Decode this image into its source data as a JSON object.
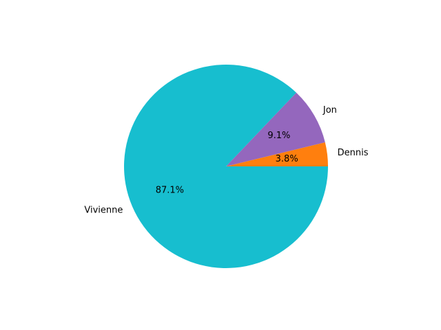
{
  "chart_data": {
    "type": "pie",
    "title": "",
    "start_angle_deg": 0,
    "direction": "counterclockwise",
    "slices": [
      {
        "label": "Dennis",
        "value": 3.8,
        "pct_label": "3.8%",
        "color": "#ff7f0e"
      },
      {
        "label": "Jon",
        "value": 9.1,
        "pct_label": "9.1%",
        "color": "#9467bd"
      },
      {
        "label": "Vivienne",
        "value": 87.1,
        "pct_label": "87.1%",
        "color": "#17becf"
      }
    ]
  }
}
